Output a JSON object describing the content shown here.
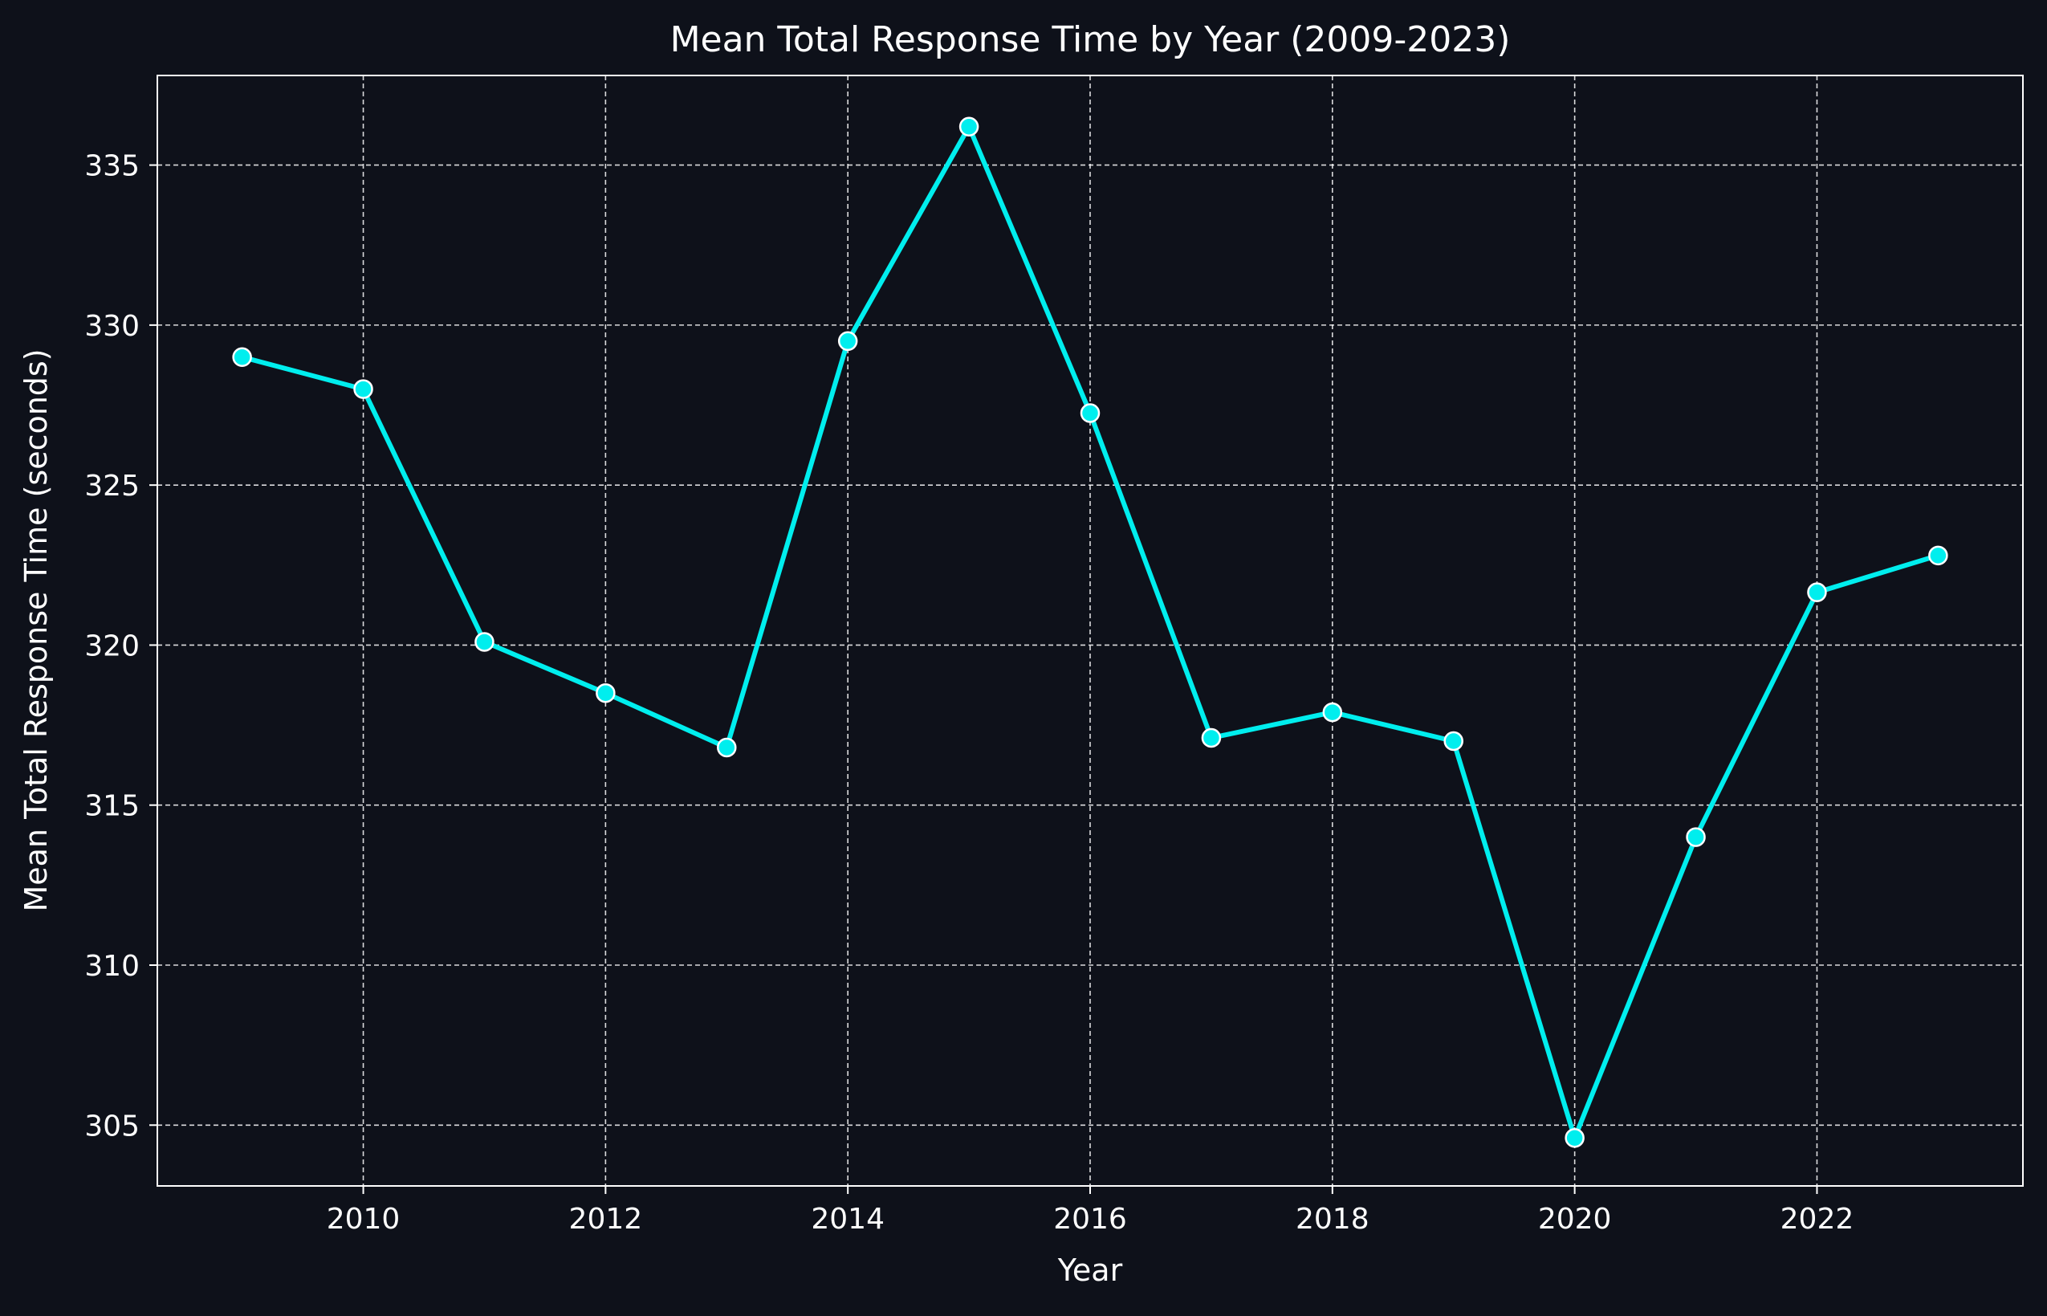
{
  "chart_data": {
    "type": "line",
    "title": "Mean Total Response Time by Year (2009-2023)",
    "xlabel": "Year",
    "ylabel": "Mean Total Response Time (seconds)",
    "x": [
      2009,
      2010,
      2011,
      2012,
      2013,
      2014,
      2015,
      2016,
      2017,
      2018,
      2019,
      2020,
      2021,
      2022,
      2023
    ],
    "series": [
      {
        "values": [
          329.0,
          328.0,
          320.1,
          318.5,
          316.8,
          329.5,
          336.2,
          327.25,
          317.1,
          317.9,
          317.0,
          304.6,
          314.0,
          321.65,
          322.8
        ]
      }
    ],
    "xlim": [
      2008.3,
      2023.7
    ],
    "ylim": [
      303.1,
      337.8
    ],
    "xticks": [
      "2010",
      "2012",
      "2014",
      "2016",
      "2018",
      "2020",
      "2022"
    ],
    "yticks": [
      "305",
      "310",
      "315",
      "320",
      "325",
      "330",
      "335"
    ],
    "grid": true,
    "colors": {
      "background": "#0e111a",
      "line": "#00eeee",
      "marker_edge": "#ffffff",
      "text": "#ffffff",
      "grid": "#ffffff"
    }
  }
}
